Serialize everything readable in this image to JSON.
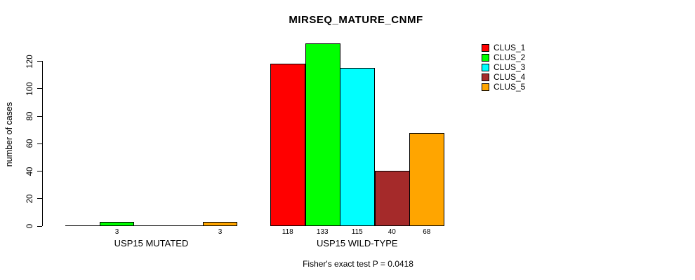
{
  "title": "MIRSEQ_MATURE_CNMF",
  "chart_data": {
    "type": "bar",
    "title": "MIRSEQ_MATURE_CNMF",
    "xlabel": "",
    "ylabel": "number of cases",
    "ylim": [
      0,
      133
    ],
    "yticks": [
      0,
      20,
      40,
      60,
      80,
      100,
      120
    ],
    "grid": false,
    "legend_position": "right",
    "categories": [
      "USP15 MUTATED",
      "USP15 WILD-TYPE"
    ],
    "series": [
      {
        "name": "CLUS_1",
        "color": "#FF0000",
        "values": [
          0,
          118
        ]
      },
      {
        "name": "CLUS_2",
        "color": "#00FF00",
        "values": [
          3,
          133
        ]
      },
      {
        "name": "CLUS_3",
        "color": "#00FFFF",
        "values": [
          0,
          115
        ]
      },
      {
        "name": "CLUS_4",
        "color": "#A52A2A",
        "values": [
          0,
          40
        ]
      },
      {
        "name": "CLUS_5",
        "color": "#FFA500",
        "values": [
          3,
          68
        ]
      }
    ],
    "bar_value_labels": [
      [
        "",
        "3",
        "",
        "",
        "3"
      ],
      [
        "118",
        "133",
        "115",
        "40",
        "68"
      ]
    ],
    "annotation": "Fisher's exact test P = 0.0418"
  }
}
